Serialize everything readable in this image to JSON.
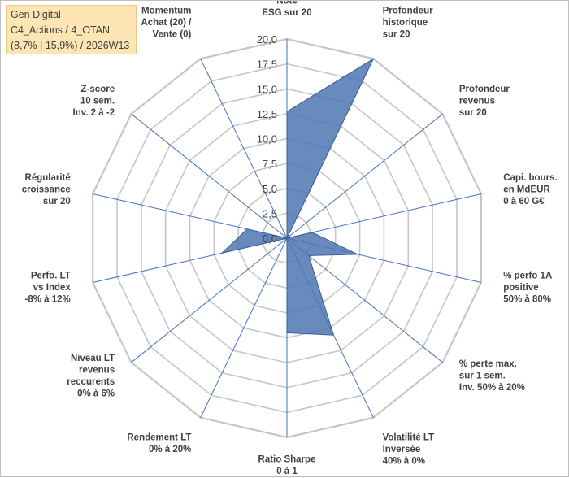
{
  "info_box": {
    "line1": "Gen Digital",
    "line2": "C4_Actions / 4_OTAN",
    "line3": "(8,7% | 15,9%) / 2026W13"
  },
  "chart_data": {
    "type": "radar",
    "title": "",
    "axes": [
      {
        "label": [
          "Note",
          "ESG sur 20"
        ],
        "value": 12.7
      },
      {
        "label": [
          "Profondeur",
          "historique",
          "sur 20"
        ],
        "value": 20.0
      },
      {
        "label": [
          "Profondeur",
          "revenus",
          "sur 20"
        ],
        "value": 0.0
      },
      {
        "label": [
          "Capi. bours.",
          "en MdEUR",
          "0 à 60 G€"
        ],
        "value": 2.6
      },
      {
        "label": [
          "% perfo 1A",
          "positive",
          "50% à 80%"
        ],
        "value": 7.3
      },
      {
        "label": [
          "% perte max.",
          "sur 1 sem.",
          "Inv. 50% à 20%"
        ],
        "value": 2.8
      },
      {
        "label": [
          "Volatilité LT",
          "Inversée",
          "40% à 0%"
        ],
        "value": 10.8
      },
      {
        "label": [
          "Ratio Sharpe",
          "0 à 1"
        ],
        "value": 9.5
      },
      {
        "label": [
          "Rendement LT",
          "0% à 20%"
        ],
        "value": 0.0
      },
      {
        "label": [
          "Niveau LT",
          "revenus",
          "reccurents",
          "0% à 6%"
        ],
        "value": 0.0
      },
      {
        "label": [
          "Perfo. LT",
          "vs Index",
          "-8% à 12%"
        ],
        "value": 6.7
      },
      {
        "label": [
          "Régularité",
          "croissance",
          "sur 20"
        ],
        "value": 4.1
      },
      {
        "label": [
          "Z-score",
          "10 sem.",
          "Inv. 2 à -2"
        ],
        "value": 0.0
      },
      {
        "label": [
          "Momentum",
          "Achat (20) /",
          "Vente (0)"
        ],
        "value": 0.0
      }
    ],
    "r_range": [
      0,
      20
    ],
    "ticks": [
      "0,0",
      "2,5",
      "5,0",
      "7,5",
      "10,0",
      "12,5",
      "15,0",
      "17,5",
      "20,0"
    ],
    "grid": true,
    "colors": {
      "fill": "#4f76b0",
      "stroke": "#3a5f96",
      "grid": "#c6c6c6",
      "spoke": "#4472c4"
    }
  }
}
